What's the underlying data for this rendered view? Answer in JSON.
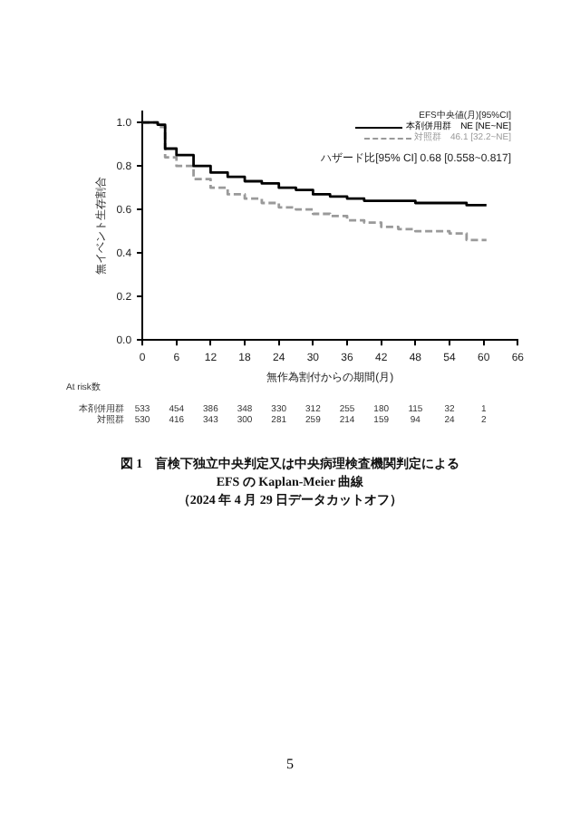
{
  "chart_data": {
    "type": "step",
    "ylabel": "無イベント生存割合",
    "xlabel": "無作為割付からの期間(月)",
    "legend_title": "EFS中央値(月)[95%CI]",
    "legend": "top right",
    "x": [
      0,
      2.7,
      4,
      6,
      9,
      12,
      15,
      18,
      21,
      24,
      27,
      30,
      33,
      36,
      39,
      42,
      45,
      48,
      51,
      54,
      57,
      60.5
    ],
    "series": [
      {
        "name": "本剤併用群　NE [NE~NE]",
        "color": "#000000",
        "line_style": "solid",
        "values": [
          1.0,
          0.99,
          0.88,
          0.85,
          0.8,
          0.77,
          0.75,
          0.73,
          0.72,
          0.7,
          0.69,
          0.67,
          0.66,
          0.65,
          0.64,
          0.64,
          0.64,
          0.63,
          0.63,
          0.63,
          0.62,
          0.62
        ]
      },
      {
        "name": "対照群　46.1 [32.2~NE]",
        "color": "#9a9a9a",
        "line_style": "dashed",
        "values": [
          1.0,
          0.98,
          0.84,
          0.8,
          0.74,
          0.7,
          0.67,
          0.65,
          0.63,
          0.61,
          0.6,
          0.58,
          0.57,
          0.55,
          0.54,
          0.52,
          0.51,
          0.5,
          0.5,
          0.49,
          0.46,
          0.46
        ]
      }
    ],
    "xlim": [
      0,
      66
    ],
    "xticks": [
      0,
      6,
      12,
      18,
      24,
      30,
      36,
      42,
      48,
      54,
      60,
      66
    ],
    "ylim": [
      0,
      1.05
    ],
    "yticks": [
      {
        "value": 0,
        "label": "0.0"
      },
      {
        "value": 0.2,
        "label": "0.2"
      },
      {
        "value": 0.4,
        "label": "0.4"
      },
      {
        "value": 0.6,
        "label": "0.6"
      },
      {
        "value": 0.8,
        "label": "0.8"
      },
      {
        "value": 1,
        "label": "1.0"
      }
    ],
    "grid": false,
    "annotations": [
      "ハザード比[95% CI] 0.68 [0.558~0.817]",
      "At risk数",
      "本剤併用群 533 454 386 348 330 312 255 180 115 32 1",
      "対照群 530 416 343 300 281 259 214 159 94 24 2",
      "図 1　盲検下独立中央判定又は中央病理検査機関判定による",
      "EFS の Kaplan-Meier 曲線",
      "（2024 年 4 月 29 日データカットオフ）",
      "5"
    ]
  }
}
